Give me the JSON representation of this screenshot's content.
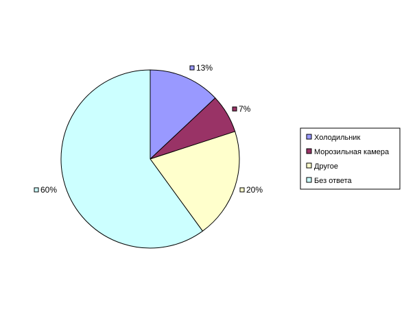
{
  "chart_data": {
    "type": "pie",
    "categories": [
      "Холодильник",
      "Морозильная камера",
      "Другое",
      "Без ответа"
    ],
    "values": [
      13,
      7,
      20,
      60
    ],
    "unit": "%",
    "data_labels": [
      "13%",
      "7%",
      "20%",
      "60%"
    ],
    "colors": [
      "#9999ff",
      "#993366",
      "#ffffcc",
      "#ccffff"
    ],
    "legend": {
      "placement": "right",
      "entries": [
        "Холодильник",
        "Морозильная камера",
        "Другое",
        "Без ответа"
      ]
    },
    "title": ""
  }
}
